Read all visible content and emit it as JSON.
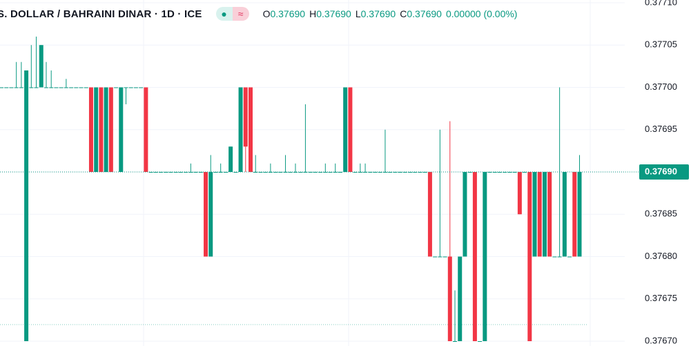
{
  "header": {
    "title": "S. DOLLAR / BAHRAINI DINAR · 1D · ICE",
    "ohlc": [
      {
        "label": "O",
        "value": "0.37690"
      },
      {
        "label": "H",
        "value": "0.37690"
      },
      {
        "label": "L",
        "value": "0.37690"
      },
      {
        "label": "C",
        "value": "0.37690"
      }
    ],
    "change": "0.00000 (0.00%)"
  },
  "chart_data": {
    "type": "candlestick",
    "up_color": "#089981",
    "down_color": "#f23645",
    "ylim": [
      0.3767,
      0.3771
    ],
    "yticks": [
      {
        "value": 0.3767,
        "label": "0.37670"
      },
      {
        "value": 0.37675,
        "label": "0.37675"
      },
      {
        "value": 0.3768,
        "label": "0.37680"
      },
      {
        "value": 0.37685,
        "label": "0.37685"
      },
      {
        "value": 0.3769,
        "label": "0.37690"
      },
      {
        "value": 0.37695,
        "label": "0.37695"
      },
      {
        "value": 0.377,
        "label": "0.37700"
      },
      {
        "value": 0.37705,
        "label": "0.37705"
      },
      {
        "value": 0.3771,
        "label": "0.37710"
      }
    ],
    "grid": true,
    "last_value": {
      "value": 0.3769,
      "label": "0.37690"
    },
    "open": [
      0.377,
      0.377,
      0.377,
      0.377,
      0.377,
      0.3767,
      0.377,
      0.377,
      0.377,
      0.377,
      0.377,
      0.377,
      0.377,
      0.377,
      0.377,
      0.377,
      0.377,
      0.377,
      0.377,
      0.3769,
      0.377,
      0.3769,
      0.377,
      0.377,
      0.3769,
      0.377,
      0.377,
      0.377,
      0.377,
      0.377,
      0.3769,
      0.3769,
      0.3769,
      0.3769,
      0.3769,
      0.3769,
      0.3769,
      0.3769,
      0.3769,
      0.3769,
      0.3769,
      0.3769,
      0.3768,
      0.3769,
      0.3769,
      0.3769,
      0.3769,
      0.3769,
      0.3769,
      0.377,
      0.377,
      0.3769,
      0.3769,
      0.3769,
      0.3769,
      0.3769,
      0.3769,
      0.3769,
      0.3769,
      0.3769,
      0.3769,
      0.3769,
      0.3769,
      0.3769,
      0.3769,
      0.3769,
      0.3769,
      0.3769,
      0.3769,
      0.3769,
      0.377,
      0.3769,
      0.3769,
      0.3769,
      0.3769,
      0.3769,
      0.3769,
      0.3769,
      0.3769,
      0.3769,
      0.3769,
      0.3769,
      0.3769,
      0.3769,
      0.3769,
      0.3769,
      0.3769,
      0.3768,
      0.3768,
      0.3768,
      0.3768,
      0.3767,
      0.3767,
      0.3768,
      0.3769,
      0.3769,
      0.3767,
      0.3767,
      0.3769,
      0.3769,
      0.3769,
      0.3769,
      0.3769,
      0.3769,
      0.3769,
      0.3769,
      0.3769,
      0.3768,
      0.3769,
      0.3768,
      0.3769,
      0.3768,
      0.3768,
      0.3768,
      0.3768,
      0.3769,
      0.3768
    ],
    "high": [
      0.377,
      0.377,
      0.377,
      0.37703,
      0.37703,
      0.37702,
      0.37705,
      0.37706,
      0.37705,
      0.37703,
      0.37702,
      0.377,
      0.377,
      0.37701,
      0.377,
      0.377,
      0.377,
      0.377,
      0.377,
      0.377,
      0.377,
      0.377,
      0.377,
      0.377,
      0.377,
      0.377,
      0.377,
      0.377,
      0.377,
      0.377,
      0.3769,
      0.3769,
      0.3769,
      0.3769,
      0.3769,
      0.3769,
      0.3769,
      0.3769,
      0.37691,
      0.3769,
      0.3769,
      0.3769,
      0.37692,
      0.3769,
      0.37691,
      0.3769,
      0.37693,
      0.3769,
      0.377,
      0.377,
      0.377,
      0.37692,
      0.3769,
      0.3769,
      0.37691,
      0.3769,
      0.3769,
      0.37692,
      0.3769,
      0.37691,
      0.3769,
      0.37698,
      0.3769,
      0.3769,
      0.3769,
      0.37691,
      0.3769,
      0.37691,
      0.3769,
      0.377,
      0.377,
      0.3769,
      0.37691,
      0.37691,
      0.3769,
      0.3769,
      0.3769,
      0.37695,
      0.3769,
      0.3769,
      0.3769,
      0.3769,
      0.3769,
      0.3769,
      0.3769,
      0.3769,
      0.3769,
      0.3768,
      0.37695,
      0.3768,
      0.37696,
      0.37676,
      0.3768,
      0.3769,
      0.3769,
      0.3769,
      0.3767,
      0.3769,
      0.3769,
      0.3769,
      0.3769,
      0.3769,
      0.3769,
      0.3769,
      0.3769,
      0.3769,
      0.3769,
      0.3769,
      0.3769,
      0.3769,
      0.3769,
      0.3768,
      0.377,
      0.3769,
      0.3768,
      0.3769,
      0.37692
    ],
    "low": [
      0.377,
      0.377,
      0.377,
      0.377,
      0.377,
      0.3767,
      0.377,
      0.377,
      0.377,
      0.377,
      0.377,
      0.377,
      0.377,
      0.377,
      0.377,
      0.377,
      0.377,
      0.377,
      0.3769,
      0.3769,
      0.3769,
      0.3769,
      0.3769,
      0.377,
      0.3769,
      0.37698,
      0.377,
      0.377,
      0.377,
      0.3769,
      0.3769,
      0.3769,
      0.3769,
      0.3769,
      0.3769,
      0.3769,
      0.3769,
      0.3769,
      0.3769,
      0.3769,
      0.3769,
      0.3768,
      0.3768,
      0.3769,
      0.3769,
      0.3769,
      0.3769,
      0.3769,
      0.3769,
      0.3769,
      0.3769,
      0.3769,
      0.3769,
      0.3769,
      0.3769,
      0.3769,
      0.3769,
      0.3769,
      0.3769,
      0.3769,
      0.3769,
      0.3769,
      0.3769,
      0.3769,
      0.3769,
      0.3769,
      0.3769,
      0.3769,
      0.3769,
      0.3769,
      0.3769,
      0.3769,
      0.3769,
      0.3769,
      0.3769,
      0.3769,
      0.3769,
      0.3769,
      0.3769,
      0.3769,
      0.3769,
      0.3769,
      0.3769,
      0.3769,
      0.3769,
      0.3769,
      0.3768,
      0.3768,
      0.3768,
      0.3768,
      0.3767,
      0.3767,
      0.3767,
      0.3768,
      0.3769,
      0.3767,
      0.3767,
      0.3767,
      0.3769,
      0.3769,
      0.3769,
      0.3769,
      0.3769,
      0.3769,
      0.37685,
      0.3769,
      0.3767,
      0.3768,
      0.3768,
      0.3768,
      0.3768,
      0.3768,
      0.3768,
      0.3768,
      0.3768,
      0.3768,
      0.3768
    ],
    "close": [
      0.377,
      0.377,
      0.377,
      0.377,
      0.377,
      0.37702,
      0.377,
      0.377,
      0.37705,
      0.377,
      0.377,
      0.377,
      0.377,
      0.377,
      0.377,
      0.377,
      0.377,
      0.377,
      0.3769,
      0.377,
      0.3769,
      0.377,
      0.3769,
      0.377,
      0.377,
      0.377,
      0.377,
      0.377,
      0.377,
      0.3769,
      0.3769,
      0.3769,
      0.3769,
      0.3769,
      0.3769,
      0.3769,
      0.3769,
      0.3769,
      0.3769,
      0.3769,
      0.3769,
      0.3768,
      0.3769,
      0.3769,
      0.3769,
      0.3769,
      0.37693,
      0.3769,
      0.377,
      0.37693,
      0.3769,
      0.3769,
      0.3769,
      0.3769,
      0.3769,
      0.3769,
      0.3769,
      0.3769,
      0.3769,
      0.3769,
      0.3769,
      0.3769,
      0.3769,
      0.3769,
      0.3769,
      0.3769,
      0.3769,
      0.3769,
      0.3769,
      0.377,
      0.3769,
      0.3769,
      0.3769,
      0.3769,
      0.3769,
      0.3769,
      0.3769,
      0.3769,
      0.3769,
      0.3769,
      0.3769,
      0.3769,
      0.3769,
      0.3769,
      0.3769,
      0.3769,
      0.3768,
      0.3768,
      0.3768,
      0.3768,
      0.3767,
      0.3767,
      0.3768,
      0.3769,
      0.3769,
      0.3767,
      0.3767,
      0.3769,
      0.3769,
      0.3769,
      0.3769,
      0.3769,
      0.3769,
      0.3769,
      0.37685,
      0.3769,
      0.3767,
      0.3769,
      0.3768,
      0.3769,
      0.3768,
      0.3768,
      0.3768,
      0.3769,
      0.3768,
      0.3768,
      0.3769
    ]
  }
}
